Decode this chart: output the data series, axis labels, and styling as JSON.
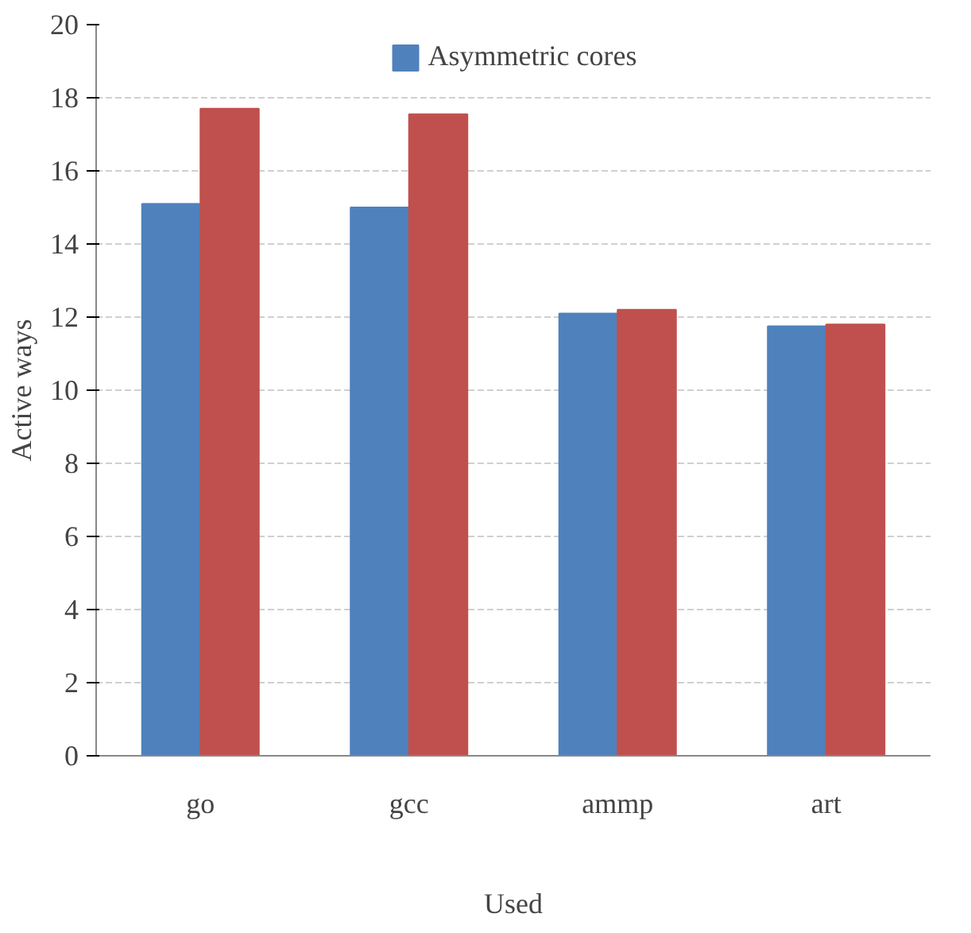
{
  "chart_data": {
    "type": "bar",
    "xlabel": "Used",
    "ylabel": "Active ways",
    "categories": [
      "go",
      "gcc",
      "ammp",
      "art"
    ],
    "series": [
      {
        "name": "Asymmetric cores",
        "color": "#4f81bd",
        "values": [
          15.1,
          15.0,
          12.1,
          11.75
        ]
      },
      {
        "color": "#c0504d",
        "values": [
          17.7,
          17.55,
          12.2,
          11.8
        ]
      }
    ],
    "ylim": [
      0,
      20
    ],
    "yticks": [
      0,
      2,
      4,
      6,
      8,
      10,
      12,
      14,
      16,
      18,
      20
    ],
    "grid": "y",
    "legend": "top"
  }
}
